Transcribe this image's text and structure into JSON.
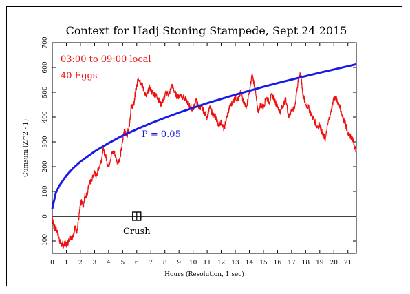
{
  "chart_data": {
    "type": "line",
    "title": "Context for Hadj Stoning Stampede, Sept 24 2015",
    "xlabel": "Hours (Resolution, 1 sec)",
    "ylabel": "Cumsum (Z^2 - 1)",
    "xlim": [
      0,
      21.6
    ],
    "ylim": [
      -150,
      700
    ],
    "x_ticks": [
      0,
      1,
      2,
      3,
      4,
      5,
      6,
      7,
      8,
      9,
      10,
      11,
      12,
      13,
      14,
      15,
      16,
      17,
      18,
      19,
      20,
      21
    ],
    "y_ticks": [
      -100,
      0,
      100,
      200,
      300,
      400,
      500,
      600,
      700
    ],
    "annotations": {
      "window": "03:00 to 09:00 local",
      "eggs": "40 Eggs",
      "probability": "P = 0.05",
      "event": "Crush",
      "event_x": 6.0,
      "event_y": 0
    },
    "colors": {
      "series": "#ee1111",
      "probability": "#1a1ae6",
      "axes": "#000000"
    },
    "series": [
      {
        "type": "line",
        "points": [
          [
            0.0,
            0
          ],
          [
            0.1,
            -40
          ],
          [
            0.2,
            -50
          ],
          [
            0.35,
            -60
          ],
          [
            0.5,
            -95
          ],
          [
            0.6,
            -110
          ],
          [
            0.75,
            -120
          ],
          [
            0.9,
            -110
          ],
          [
            1.0,
            -115
          ],
          [
            1.15,
            -100
          ],
          [
            1.3,
            -85
          ],
          [
            1.5,
            -80
          ],
          [
            1.6,
            -40
          ],
          [
            1.75,
            -70
          ],
          [
            1.9,
            0
          ],
          [
            2.0,
            50
          ],
          [
            2.1,
            60
          ],
          [
            2.2,
            40
          ],
          [
            2.3,
            80
          ],
          [
            2.5,
            90
          ],
          [
            2.6,
            130
          ],
          [
            2.8,
            145
          ],
          [
            3.0,
            180
          ],
          [
            3.1,
            160
          ],
          [
            3.3,
            195
          ],
          [
            3.5,
            230
          ],
          [
            3.6,
            270
          ],
          [
            3.8,
            240
          ],
          [
            4.0,
            200
          ],
          [
            4.2,
            250
          ],
          [
            4.4,
            260
          ],
          [
            4.6,
            220
          ],
          [
            4.8,
            230
          ],
          [
            5.0,
            300
          ],
          [
            5.1,
            350
          ],
          [
            5.3,
            320
          ],
          [
            5.5,
            380
          ],
          [
            5.6,
            440
          ],
          [
            5.8,
            450
          ],
          [
            5.9,
            500
          ],
          [
            6.0,
            520
          ],
          [
            6.1,
            560
          ],
          [
            6.3,
            540
          ],
          [
            6.5,
            510
          ],
          [
            6.7,
            480
          ],
          [
            6.9,
            520
          ],
          [
            7.1,
            500
          ],
          [
            7.3,
            490
          ],
          [
            7.5,
            480
          ],
          [
            7.7,
            450
          ],
          [
            7.9,
            470
          ],
          [
            8.1,
            500
          ],
          [
            8.3,
            490
          ],
          [
            8.5,
            530
          ],
          [
            8.7,
            500
          ],
          [
            8.9,
            480
          ],
          [
            9.1,
            490
          ],
          [
            9.3,
            480
          ],
          [
            9.6,
            460
          ],
          [
            9.8,
            440
          ],
          [
            10.0,
            430
          ],
          [
            10.2,
            470
          ],
          [
            10.4,
            440
          ],
          [
            10.6,
            440
          ],
          [
            10.8,
            420
          ],
          [
            11.0,
            400
          ],
          [
            11.2,
            440
          ],
          [
            11.4,
            410
          ],
          [
            11.6,
            400
          ],
          [
            11.8,
            370
          ],
          [
            12.0,
            380
          ],
          [
            12.2,
            350
          ],
          [
            12.4,
            400
          ],
          [
            12.6,
            440
          ],
          [
            12.8,
            460
          ],
          [
            13.0,
            480
          ],
          [
            13.2,
            470
          ],
          [
            13.4,
            500
          ],
          [
            13.6,
            460
          ],
          [
            13.8,
            440
          ],
          [
            14.0,
            500
          ],
          [
            14.2,
            570
          ],
          [
            14.4,
            520
          ],
          [
            14.6,
            420
          ],
          [
            14.8,
            450
          ],
          [
            15.0,
            440
          ],
          [
            15.2,
            480
          ],
          [
            15.4,
            460
          ],
          [
            15.6,
            490
          ],
          [
            15.8,
            470
          ],
          [
            16.0,
            440
          ],
          [
            16.2,
            420
          ],
          [
            16.4,
            450
          ],
          [
            16.6,
            470
          ],
          [
            16.8,
            400
          ],
          [
            17.0,
            430
          ],
          [
            17.2,
            430
          ],
          [
            17.4,
            520
          ],
          [
            17.6,
            580
          ],
          [
            17.7,
            550
          ],
          [
            17.8,
            490
          ],
          [
            18.0,
            450
          ],
          [
            18.2,
            440
          ],
          [
            18.4,
            410
          ],
          [
            18.6,
            390
          ],
          [
            18.8,
            360
          ],
          [
            19.0,
            370
          ],
          [
            19.2,
            330
          ],
          [
            19.4,
            310
          ],
          [
            19.6,
            380
          ],
          [
            19.8,
            420
          ],
          [
            20.0,
            480
          ],
          [
            20.2,
            470
          ],
          [
            20.4,
            450
          ],
          [
            20.6,
            400
          ],
          [
            20.8,
            380
          ],
          [
            21.0,
            330
          ],
          [
            21.2,
            320
          ],
          [
            21.4,
            300
          ],
          [
            21.6,
            260
          ]
        ]
      },
      {
        "type": "line",
        "function": "sqrt",
        "points": [
          [
            0.0,
            30
          ],
          [
            0.25,
            94
          ],
          [
            0.5,
            123
          ],
          [
            1.0,
            164
          ],
          [
            1.5,
            195
          ],
          [
            2.0,
            220
          ],
          [
            3.0,
            261
          ],
          [
            4.0,
            295
          ],
          [
            5.0,
            325
          ],
          [
            6.0,
            351
          ],
          [
            7.0,
            375
          ],
          [
            8.0,
            397
          ],
          [
            9.0,
            418
          ],
          [
            10.0,
            437
          ],
          [
            11.0,
            456
          ],
          [
            12.0,
            473
          ],
          [
            13.0,
            490
          ],
          [
            14.0,
            506
          ],
          [
            15.0,
            522
          ],
          [
            16.0,
            537
          ],
          [
            17.0,
            551
          ],
          [
            18.0,
            565
          ],
          [
            19.0,
            579
          ],
          [
            20.0,
            592
          ],
          [
            21.0,
            605
          ],
          [
            21.6,
            613
          ]
        ]
      }
    ]
  }
}
